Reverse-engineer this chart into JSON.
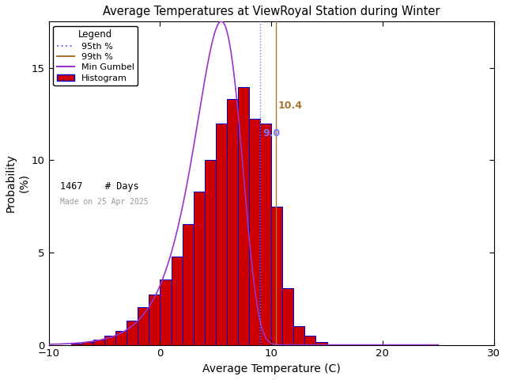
{
  "title": "Average Temperatures at ViewRoyal Station during Winter",
  "xlabel": "Average Temperature (C)",
  "ylabel": "Probability\n(%)",
  "xlim": [
    -10,
    30
  ],
  "ylim": [
    0,
    17.5
  ],
  "yticks": [
    0,
    5,
    10,
    15
  ],
  "xticks": [
    -10,
    0,
    10,
    20,
    30
  ],
  "n_days": 1467,
  "p95_value": 9.0,
  "p99_value": 10.4,
  "p95_color": "#7777ff",
  "p99_color": "#aa7733",
  "gumbel_color": "#9933cc",
  "hist_color": "#cc0000",
  "hist_edge_color": "#0000cc",
  "bg_color": "#ffffff",
  "date_label": "Made on 25 Apr 2025",
  "date_label_color": "#999999",
  "title_color": "#000000",
  "hist_bins_left": [
    -8,
    -7,
    -6,
    -5,
    -4,
    -3,
    -2,
    -1,
    0,
    1,
    2,
    3,
    4,
    5,
    6,
    7,
    8,
    9,
    10,
    11,
    12,
    13,
    14
  ],
  "hist_probs": [
    0.07,
    0.14,
    0.27,
    0.48,
    0.75,
    1.3,
    2.05,
    2.73,
    3.55,
    4.77,
    6.55,
    8.3,
    10.02,
    11.97,
    13.3,
    13.96,
    12.24,
    11.97,
    7.5,
    3.07,
    1.02,
    0.48,
    0.14
  ],
  "gumbel_mu": 5.5,
  "gumbel_beta": 2.1
}
